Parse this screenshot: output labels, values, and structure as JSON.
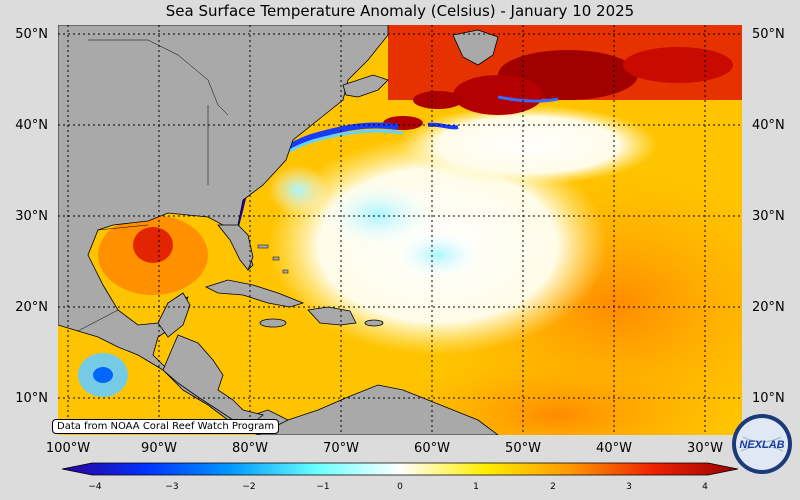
{
  "title": "Sea Surface Temperature Anomaly (Celsius) - January 10 2025",
  "credit": "Data from NOAA Coral Reef Watch Program",
  "lat_labels": [
    "50°N",
    "40°N",
    "30°N",
    "20°N",
    "10°N"
  ],
  "lon_labels": [
    "100°W",
    "90°W",
    "80°W",
    "70°W",
    "60°W",
    "50°W",
    "40°W",
    "30°W"
  ],
  "colorbar": {
    "ticks": [
      "−4",
      "−3",
      "−2",
      "−1",
      "0",
      "1",
      "2",
      "3",
      "4"
    ],
    "min": -4,
    "max": 4,
    "colors": [
      "#2a0099",
      "#0033ff",
      "#0099ff",
      "#66ffff",
      "#ffffff",
      "#ffee00",
      "#ff9900",
      "#ee2200",
      "#990000"
    ]
  },
  "colors": {
    "land": "#a9a9a9",
    "ocean_warm": "#ffcc00",
    "ocean_hot": "#aa0000",
    "ocean_cool": "#0044ff"
  },
  "logo": {
    "text": "NEXLAB"
  }
}
